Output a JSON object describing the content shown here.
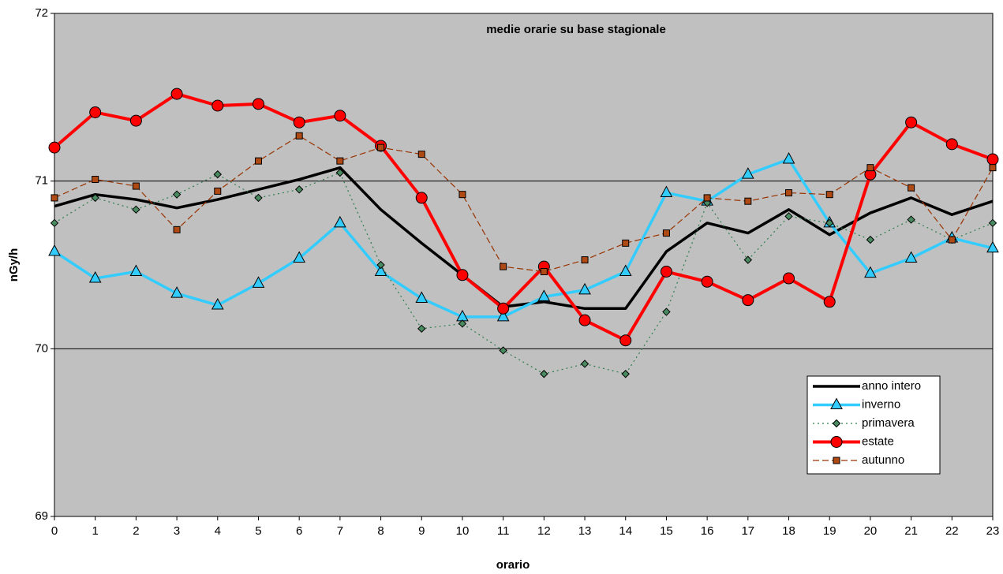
{
  "chart_data": {
    "type": "line",
    "title": "medie orarie su base stagionale",
    "x_label": "orario",
    "y_label": "nGy/h",
    "categories": [
      "0",
      "1",
      "2",
      "3",
      "4",
      "5",
      "6",
      "7",
      "8",
      "9",
      "10",
      "11",
      "12",
      "13",
      "14",
      "15",
      "16",
      "17",
      "18",
      "19",
      "20",
      "21",
      "22",
      "23"
    ],
    "ylim": [
      69,
      72
    ],
    "yticks": [
      69,
      70,
      71,
      72
    ],
    "grid": true,
    "series": [
      {
        "name": "anno intero",
        "color": "#000000",
        "width": 3.5,
        "dash": "none",
        "marker": "none",
        "values": [
          70.85,
          70.92,
          70.89,
          70.84,
          70.89,
          70.95,
          71.01,
          71.08,
          70.83,
          70.63,
          70.44,
          70.25,
          70.28,
          70.24,
          70.24,
          70.58,
          70.75,
          70.69,
          70.83,
          70.68,
          70.81,
          70.9,
          70.8,
          70.88
        ]
      },
      {
        "name": "inverno",
        "color": "#33ccff",
        "width": 3.5,
        "dash": "none",
        "marker": "triangle",
        "values": [
          70.58,
          70.42,
          70.46,
          70.33,
          70.26,
          70.39,
          70.54,
          70.75,
          70.46,
          70.3,
          70.19,
          70.19,
          70.31,
          70.35,
          70.46,
          70.93,
          70.88,
          71.04,
          71.13,
          70.75,
          70.45,
          70.54,
          70.66,
          70.6
        ]
      },
      {
        "name": "primavera",
        "color": "#2e7d4f",
        "width": 1.2,
        "dash": "2,4",
        "marker": "diamond",
        "values": [
          70.75,
          70.9,
          70.83,
          70.92,
          71.04,
          70.9,
          70.95,
          71.05,
          70.5,
          70.12,
          70.15,
          69.99,
          69.85,
          69.91,
          69.85,
          70.22,
          70.87,
          70.53,
          70.79,
          70.75,
          70.65,
          70.77,
          70.65,
          70.75
        ]
      },
      {
        "name": "estate",
        "color": "#ff0000",
        "width": 4,
        "dash": "none",
        "marker": "circle",
        "values": [
          71.2,
          71.41,
          71.36,
          71.52,
          71.45,
          71.46,
          71.35,
          71.39,
          71.21,
          70.9,
          70.44,
          70.24,
          70.49,
          70.17,
          70.05,
          70.46,
          70.4,
          70.29,
          70.42,
          70.28,
          71.04,
          71.35,
          71.22,
          71.13
        ]
      },
      {
        "name": "autunno",
        "color": "#993300",
        "width": 1.2,
        "dash": "8,4",
        "marker": "square",
        "values": [
          70.9,
          71.01,
          70.97,
          70.71,
          70.94,
          71.12,
          71.27,
          71.12,
          71.2,
          71.16,
          70.92,
          70.49,
          70.46,
          70.53,
          70.63,
          70.69,
          70.9,
          70.88,
          70.93,
          70.92,
          71.08,
          70.96,
          70.65,
          71.08
        ]
      }
    ]
  }
}
